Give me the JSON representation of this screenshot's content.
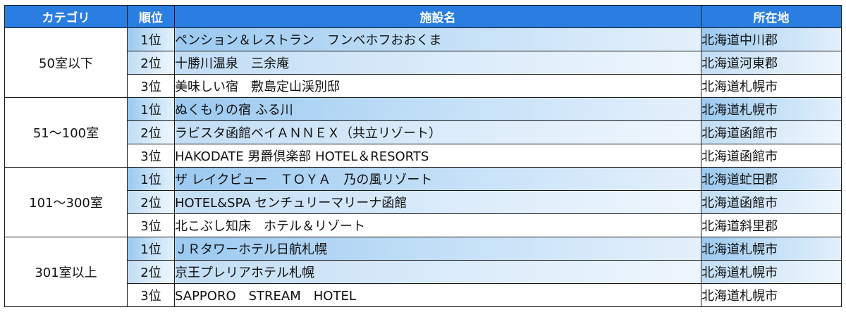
{
  "table": {
    "headers": {
      "category": "カテゴリ",
      "rank": "順位",
      "facility": "施設名",
      "location": "所在地"
    },
    "groups": [
      {
        "category": "50室以下",
        "rows": [
          {
            "rank": "1位",
            "facility": "ペンション＆レストラン　フンベホフおおくま",
            "location": "北海道中川郡"
          },
          {
            "rank": "2位",
            "facility": "十勝川温泉　三余庵",
            "location": "北海道河東郡"
          },
          {
            "rank": "3位",
            "facility": "美味しい宿　敷島定山渓別邸",
            "location": "北海道札幌市"
          }
        ]
      },
      {
        "category": "51～100室",
        "rows": [
          {
            "rank": "1位",
            "facility": "ぬくもりの宿 ふる川",
            "location": "北海道札幌市"
          },
          {
            "rank": "2位",
            "facility": "ラビスタ函館ベイＡＮＮＥＸ（共立リゾート）",
            "location": "北海道函館市"
          },
          {
            "rank": "3位",
            "facility": "HAKODATE 男爵倶楽部 HOTEL＆RESORTS",
            "location": "北海道函館市"
          }
        ]
      },
      {
        "category": "101～300室",
        "rows": [
          {
            "rank": "1位",
            "facility": "ザ レイクビュー　ＴＯＹＡ　乃の風リゾート",
            "location": "北海道虻田郡"
          },
          {
            "rank": "2位",
            "facility": "HOTEL&SPA センチュリーマリーナ函館",
            "location": "北海道函館市"
          },
          {
            "rank": "3位",
            "facility": "北こぶし知床　ホテル＆リゾート",
            "location": "北海道斜里郡"
          }
        ]
      },
      {
        "category": "301室以上",
        "rows": [
          {
            "rank": "1位",
            "facility": "ＪＲタワーホテル日航札幌",
            "location": "北海道札幌市"
          },
          {
            "rank": "2位",
            "facility": "京王プレリアホテル札幌",
            "location": "北海道札幌市"
          },
          {
            "rank": "3位",
            "facility": "SAPPORO　STREAM　HOTEL",
            "location": "北海道札幌市"
          }
        ]
      }
    ]
  }
}
